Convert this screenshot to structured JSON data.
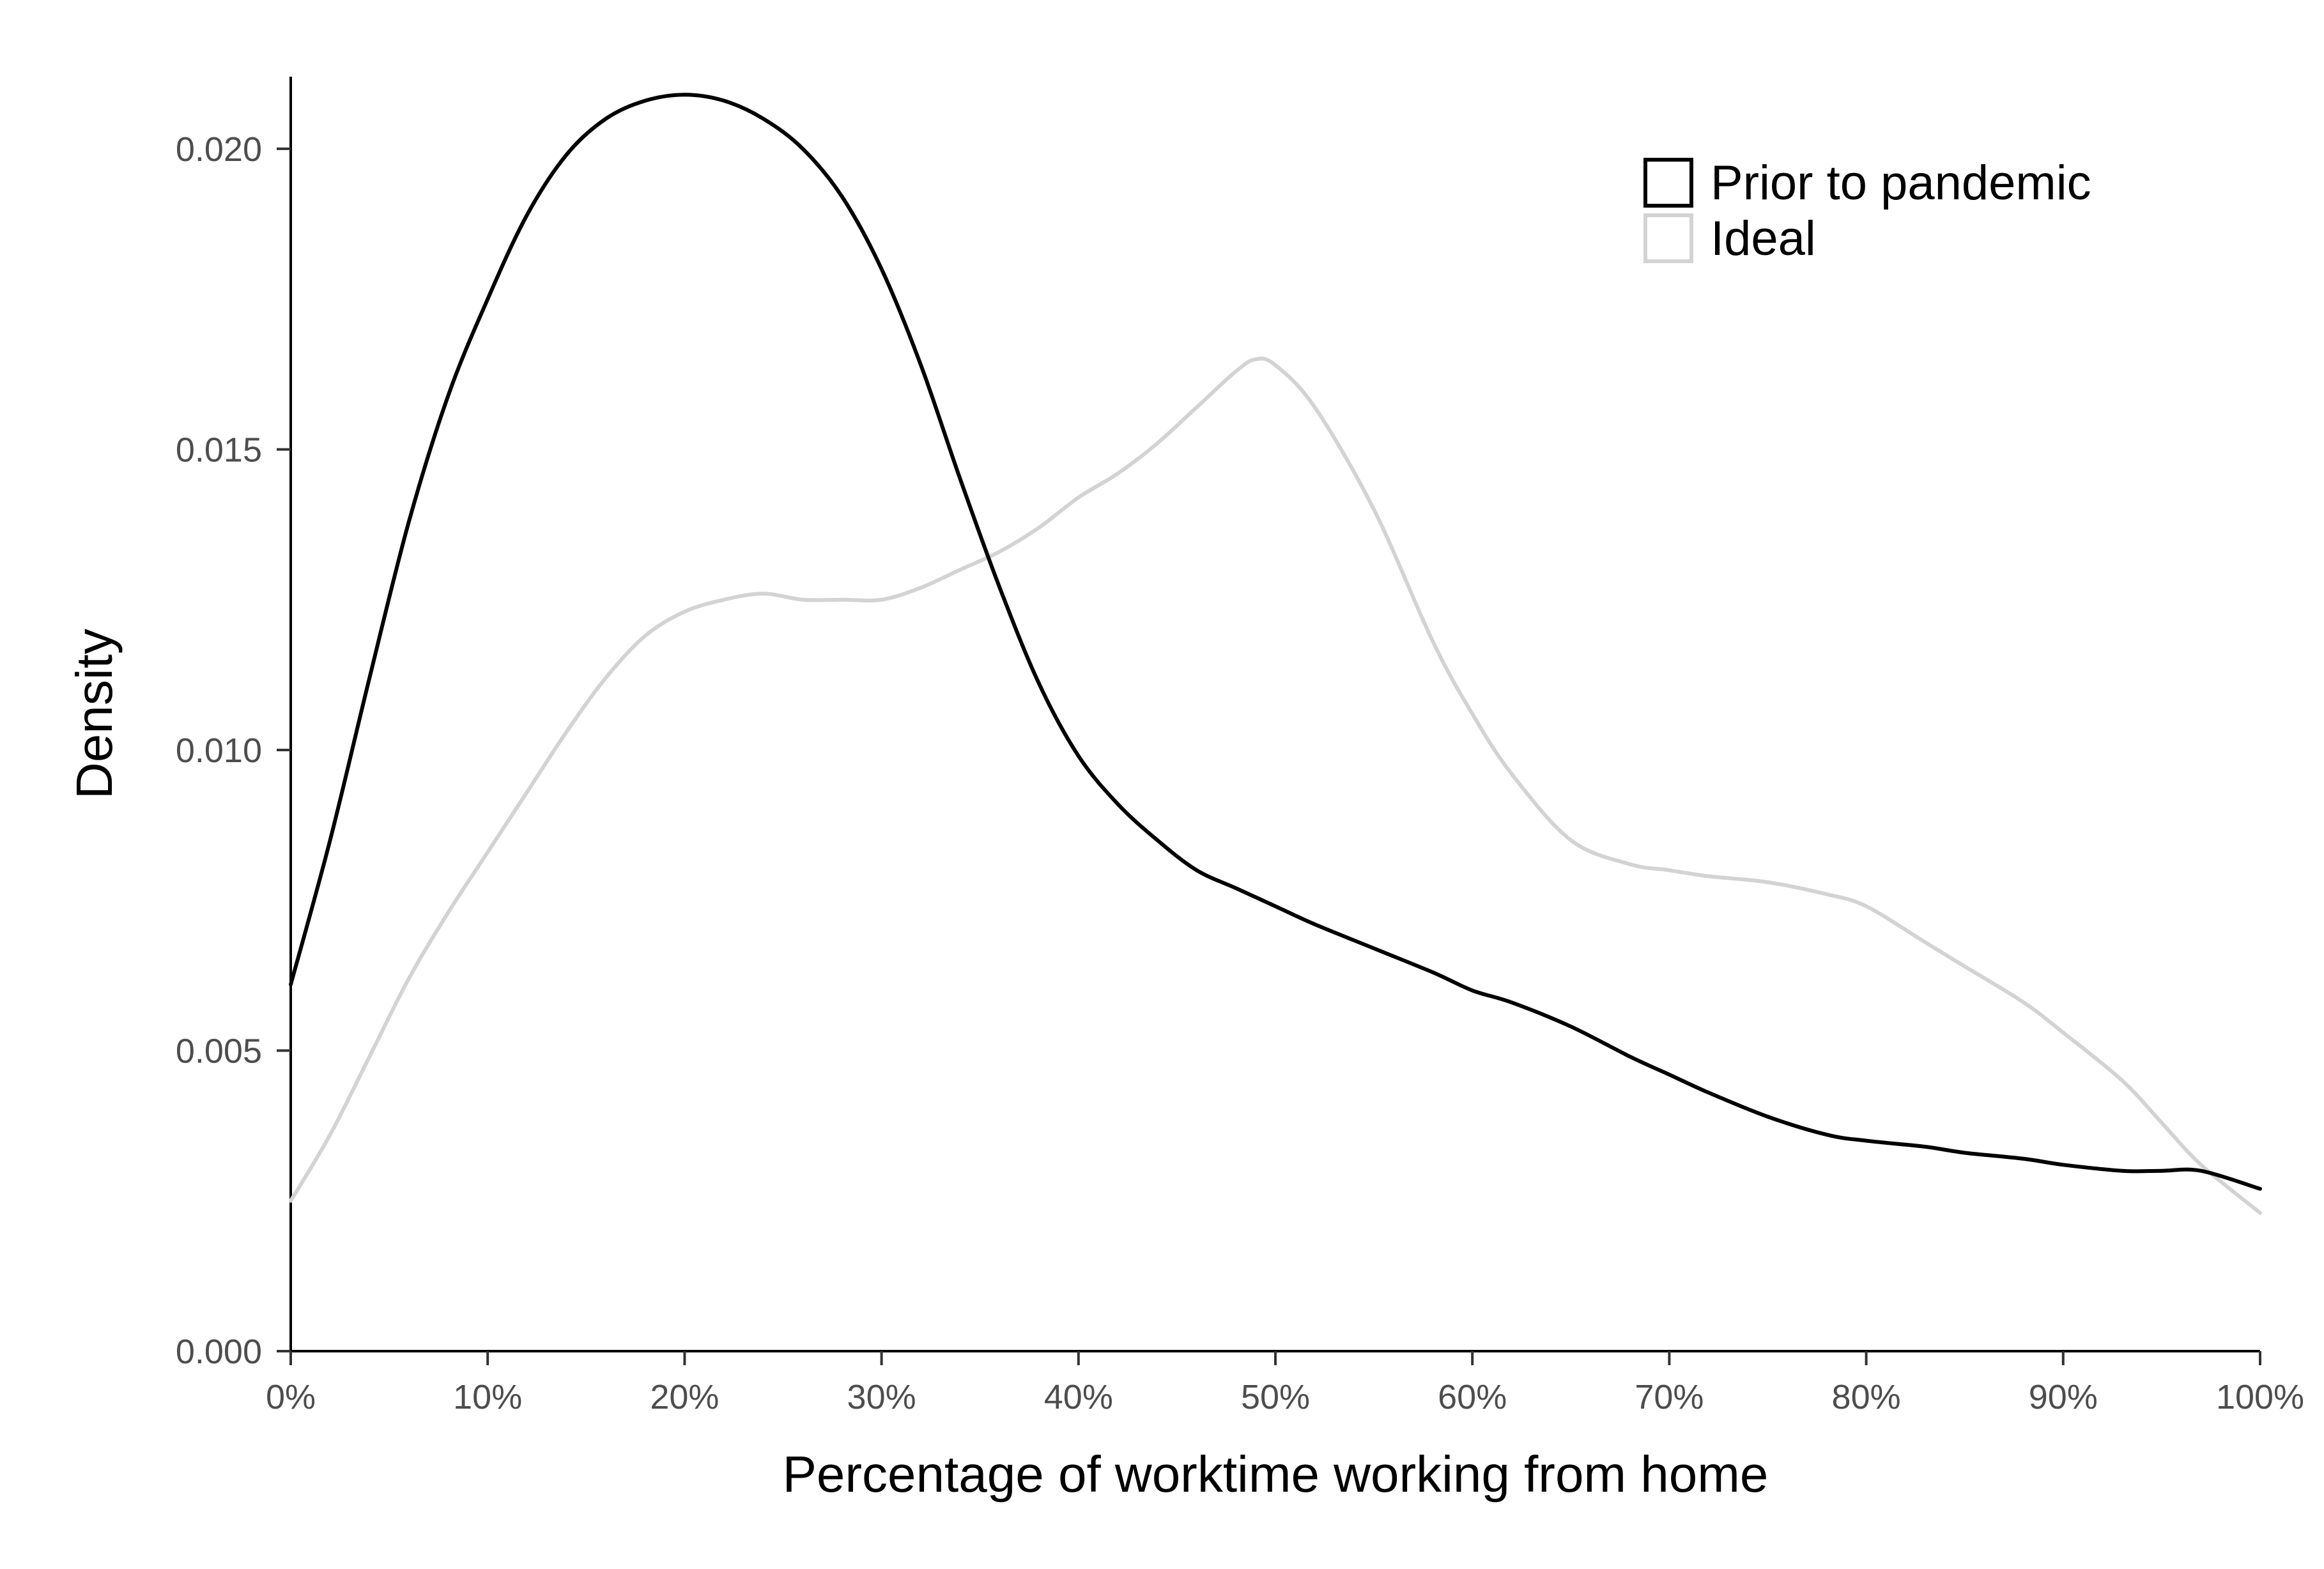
{
  "chart_data": {
    "type": "line",
    "title": "",
    "xlabel": "Percentage of worktime working from home",
    "ylabel": "Density",
    "xlim": [
      0,
      100
    ],
    "ylim": [
      0,
      0.0212
    ],
    "x_ticks": [
      0,
      10,
      20,
      30,
      40,
      50,
      60,
      70,
      80,
      90,
      100
    ],
    "x_tick_labels": [
      "0%",
      "10%",
      "20%",
      "30%",
      "40%",
      "50%",
      "60%",
      "70%",
      "80%",
      "90%",
      "100%"
    ],
    "y_ticks": [
      0,
      0.005,
      0.01,
      0.015,
      0.02
    ],
    "y_tick_labels": [
      "0.000",
      "0.005",
      "0.010",
      "0.015",
      "0.020"
    ],
    "grid": false,
    "legend_position": "top-right",
    "series": [
      {
        "name": "Prior to pandemic",
        "color": "#000000",
        "x": [
          0,
          2,
          4,
          6,
          8,
          10,
          12,
          14,
          16,
          18,
          20,
          22,
          24,
          26,
          28,
          30,
          32,
          34,
          36,
          38,
          40,
          42,
          44,
          46,
          48,
          50,
          52,
          55,
          58,
          60,
          62,
          65,
          68,
          70,
          72,
          75,
          78,
          80,
          83,
          85,
          88,
          90,
          93,
          95,
          97,
          100
        ],
        "y": [
          0.0061,
          0.0085,
          0.0112,
          0.0138,
          0.0159,
          0.0175,
          0.0189,
          0.0199,
          0.0205,
          0.0208,
          0.0209,
          0.0208,
          0.0205,
          0.02,
          0.0192,
          0.018,
          0.0164,
          0.0145,
          0.0127,
          0.0111,
          0.0099,
          0.0091,
          0.0085,
          0.008,
          0.0077,
          0.0074,
          0.0071,
          0.0067,
          0.0063,
          0.006,
          0.0058,
          0.0054,
          0.0049,
          0.0046,
          0.0043,
          0.0039,
          0.0036,
          0.0035,
          0.0034,
          0.0033,
          0.0032,
          0.0031,
          0.003,
          0.003,
          0.003,
          0.0027
        ]
      },
      {
        "name": "Ideal",
        "color": "#d3d3d3",
        "x": [
          0,
          2,
          4,
          6,
          8,
          10,
          12,
          14,
          16,
          18,
          20,
          22,
          24,
          26,
          28,
          30,
          32,
          34,
          36,
          38,
          40,
          42,
          44,
          46,
          48,
          49,
          50,
          52,
          55,
          58,
          60,
          62,
          65,
          68,
          70,
          72,
          75,
          78,
          80,
          83,
          85,
          88,
          90,
          93,
          95,
          97,
          100
        ],
        "y": [
          0.0025,
          0.0036,
          0.0049,
          0.0062,
          0.0073,
          0.0083,
          0.0093,
          0.0103,
          0.0112,
          0.0119,
          0.0123,
          0.0125,
          0.0126,
          0.0125,
          0.0125,
          0.0125,
          0.0127,
          0.013,
          0.0133,
          0.0137,
          0.0142,
          0.0146,
          0.0151,
          0.0157,
          0.0163,
          0.0165,
          0.0164,
          0.0157,
          0.014,
          0.0118,
          0.0106,
          0.0096,
          0.0085,
          0.0081,
          0.008,
          0.0079,
          0.0078,
          0.0076,
          0.0074,
          0.0068,
          0.0064,
          0.0058,
          0.0053,
          0.0045,
          0.0038,
          0.0031,
          0.0023
        ]
      }
    ]
  }
}
